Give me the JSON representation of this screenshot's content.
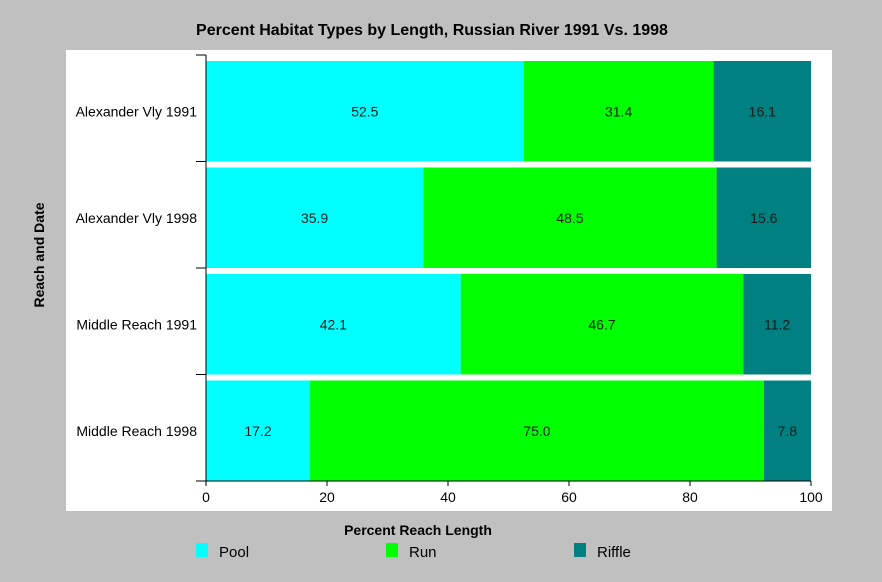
{
  "chart_data": {
    "type": "bar",
    "orientation": "horizontal",
    "stacked": true,
    "title": "Percent Habitat Types by Length, Russian River 1991 Vs. 1998",
    "xlabel": "Percent Reach Length",
    "ylabel": "Reach and Date",
    "xlim": [
      0,
      100
    ],
    "xticks": [
      "0",
      "20",
      "40",
      "60",
      "80",
      "100"
    ],
    "categories": [
      "Alexander Vly 1991",
      "Alexander Vly 1998",
      "Middle Reach 1991",
      "Middle Reach 1998"
    ],
    "series": [
      {
        "name": "Pool",
        "color": "#00ffff",
        "values": [
          52.5,
          35.9,
          42.1,
          17.2
        ],
        "labels": [
          "52.5",
          "35.9",
          "42.1",
          "17.2"
        ]
      },
      {
        "name": "Run",
        "color": "#00ff00",
        "values": [
          31.4,
          48.5,
          46.7,
          75.0
        ],
        "labels": [
          "31.4",
          "48.5",
          "46.7",
          "75.0"
        ]
      },
      {
        "name": "Riffle",
        "color": "#008080",
        "values": [
          16.1,
          15.6,
          11.2,
          7.8
        ],
        "labels": [
          "16.1",
          "15.6",
          "11.2",
          "7.8"
        ]
      }
    ],
    "grid": false,
    "legend_position": "bottom"
  }
}
